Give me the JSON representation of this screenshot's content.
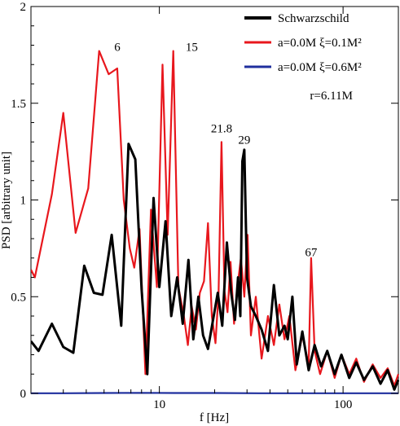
{
  "chart_data": {
    "type": "line",
    "xlabel": "f [Hz]",
    "ylabel": "PSD [arbitrary unit]",
    "xscale": "log",
    "xlim": [
      2,
      200
    ],
    "ylim": [
      0,
      2
    ],
    "grid": false,
    "legend_position": "top-right",
    "xticks": [
      {
        "value": 10,
        "label": "10"
      },
      {
        "value": 100,
        "label": "100"
      }
    ],
    "yticks": [
      {
        "value": 0,
        "label": "0"
      },
      {
        "value": 0.5,
        "label": "0.5"
      },
      {
        "value": 1,
        "label": "1"
      },
      {
        "value": 1.5,
        "label": "1.5"
      },
      {
        "value": 2,
        "label": "2"
      }
    ],
    "annotations": [
      {
        "text": "r=6.11M",
        "x": 66,
        "y": 1.52
      },
      {
        "text": "6",
        "x": 5.9,
        "y": 1.77
      },
      {
        "text": "15",
        "x": 15.0,
        "y": 1.77
      },
      {
        "text": "21.8",
        "x": 21.8,
        "y": 1.35
      },
      {
        "text": "29",
        "x": 29.0,
        "y": 1.29
      },
      {
        "text": "67",
        "x": 67.0,
        "y": 0.71
      }
    ],
    "series": [
      {
        "name": "Schwarzschild",
        "color": "#000000",
        "x": [
          2.0,
          2.2,
          2.6,
          3.0,
          3.4,
          3.9,
          4.4,
          4.9,
          5.5,
          6.2,
          6.8,
          7.4,
          8.0,
          8.6,
          9.3,
          10.0,
          10.8,
          11.6,
          12.5,
          13.4,
          14.4,
          15.3,
          16.3,
          17.3,
          18.4,
          19.6,
          20.8,
          22.0,
          23.3,
          24.6,
          25.8,
          26.8,
          27.6,
          28.3,
          29.0,
          30.0,
          31.5,
          33.5,
          36,
          39,
          42,
          45,
          48,
          50,
          53,
          56,
          60,
          65,
          70,
          76,
          82,
          90,
          98,
          108,
          118,
          130,
          145,
          160,
          175,
          190,
          200
        ],
        "values": [
          0.27,
          0.22,
          0.36,
          0.24,
          0.21,
          0.66,
          0.52,
          0.51,
          0.82,
          0.35,
          1.29,
          1.21,
          0.54,
          0.1,
          1.01,
          0.55,
          0.89,
          0.4,
          0.6,
          0.36,
          0.69,
          0.28,
          0.5,
          0.3,
          0.23,
          0.38,
          0.52,
          0.35,
          0.78,
          0.52,
          0.38,
          0.6,
          0.4,
          1.2,
          1.26,
          0.6,
          0.45,
          0.4,
          0.33,
          0.22,
          0.56,
          0.3,
          0.35,
          0.28,
          0.5,
          0.15,
          0.32,
          0.12,
          0.25,
          0.14,
          0.22,
          0.1,
          0.2,
          0.08,
          0.16,
          0.07,
          0.14,
          0.05,
          0.12,
          0.02,
          0.07
        ]
      },
      {
        "name": "a=0.0M   ξ=0.1M²",
        "color": "#e8171d",
        "x": [
          2.0,
          2.1,
          2.6,
          3.0,
          3.5,
          4.1,
          4.7,
          5.3,
          5.9,
          6.4,
          6.9,
          7.3,
          7.8,
          8.4,
          9.0,
          9.7,
          10.4,
          11.1,
          11.9,
          12.7,
          13.6,
          14.3,
          15.0,
          15.8,
          16.6,
          17.5,
          18.4,
          19.3,
          20.2,
          21.0,
          21.8,
          22.6,
          23.5,
          24.4,
          25.5,
          26.6,
          27.8,
          29.0,
          30.2,
          31.5,
          33.5,
          36,
          39,
          42,
          45,
          48,
          51,
          55,
          60,
          65,
          67,
          70,
          75,
          82,
          90,
          98,
          108,
          118,
          130,
          145,
          160,
          175,
          190,
          200
        ],
        "values": [
          0.64,
          0.6,
          1.03,
          1.45,
          0.83,
          1.06,
          1.77,
          1.65,
          1.68,
          1.0,
          0.75,
          0.65,
          0.85,
          0.1,
          0.95,
          0.55,
          1.7,
          0.82,
          1.77,
          0.55,
          0.4,
          0.25,
          0.45,
          0.33,
          0.52,
          0.58,
          0.88,
          0.4,
          0.26,
          0.52,
          1.3,
          0.53,
          0.42,
          0.68,
          0.36,
          0.55,
          0.7,
          0.5,
          0.82,
          0.3,
          0.5,
          0.18,
          0.4,
          0.25,
          0.46,
          0.28,
          0.4,
          0.12,
          0.3,
          0.15,
          0.7,
          0.22,
          0.1,
          0.22,
          0.08,
          0.2,
          0.1,
          0.18,
          0.06,
          0.15,
          0.08,
          0.13,
          0.04,
          0.1
        ]
      },
      {
        "name": "a=0.0M   ξ=0.6M²",
        "color": "#1f2f9e",
        "x": [
          2.0,
          3,
          5,
          8,
          12,
          20,
          35,
          60,
          100,
          150,
          200
        ],
        "values": [
          0.001,
          0.001,
          0.002,
          0.003,
          0.002,
          0.002,
          0.001,
          0.001,
          0.001,
          0.001,
          0.001
        ]
      }
    ]
  }
}
